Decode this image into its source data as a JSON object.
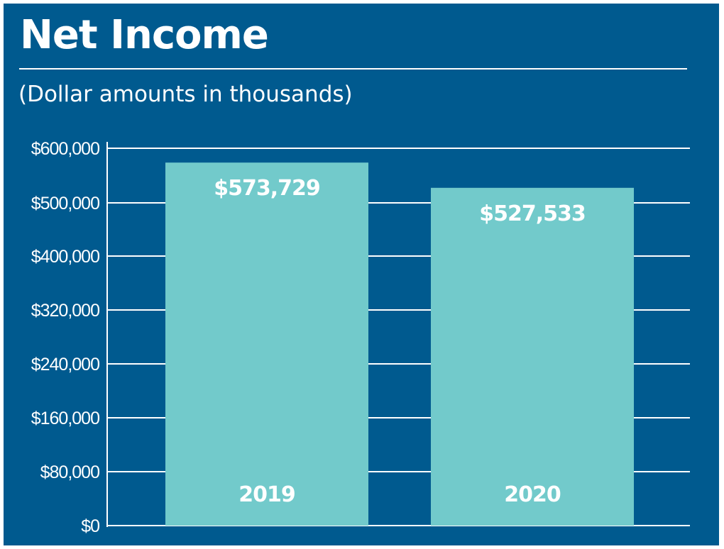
{
  "chart_data": {
    "type": "bar",
    "title": "Net Income",
    "subtitle": "(Dollar amounts in thousands)",
    "categories": [
      "2019",
      "2020"
    ],
    "values": [
      573729,
      527533
    ],
    "value_labels": [
      "$573,729",
      "$527,533"
    ],
    "y_ticks": [
      0,
      80000,
      160000,
      240000,
      320000,
      400000,
      500000,
      600000
    ],
    "y_tick_labels": [
      "$0",
      "$80,000",
      "$160,000",
      "$240,000",
      "$320,000",
      "$400,000",
      "$500,000",
      "$600,000"
    ],
    "ylim": [
      0,
      600000
    ],
    "xlabel": "",
    "ylabel": "",
    "grid": true,
    "legend": "none",
    "colors": {
      "background": "#005a8f",
      "bar": "#72cacb",
      "text": "#ffffff",
      "grid": "#ffffff"
    }
  }
}
